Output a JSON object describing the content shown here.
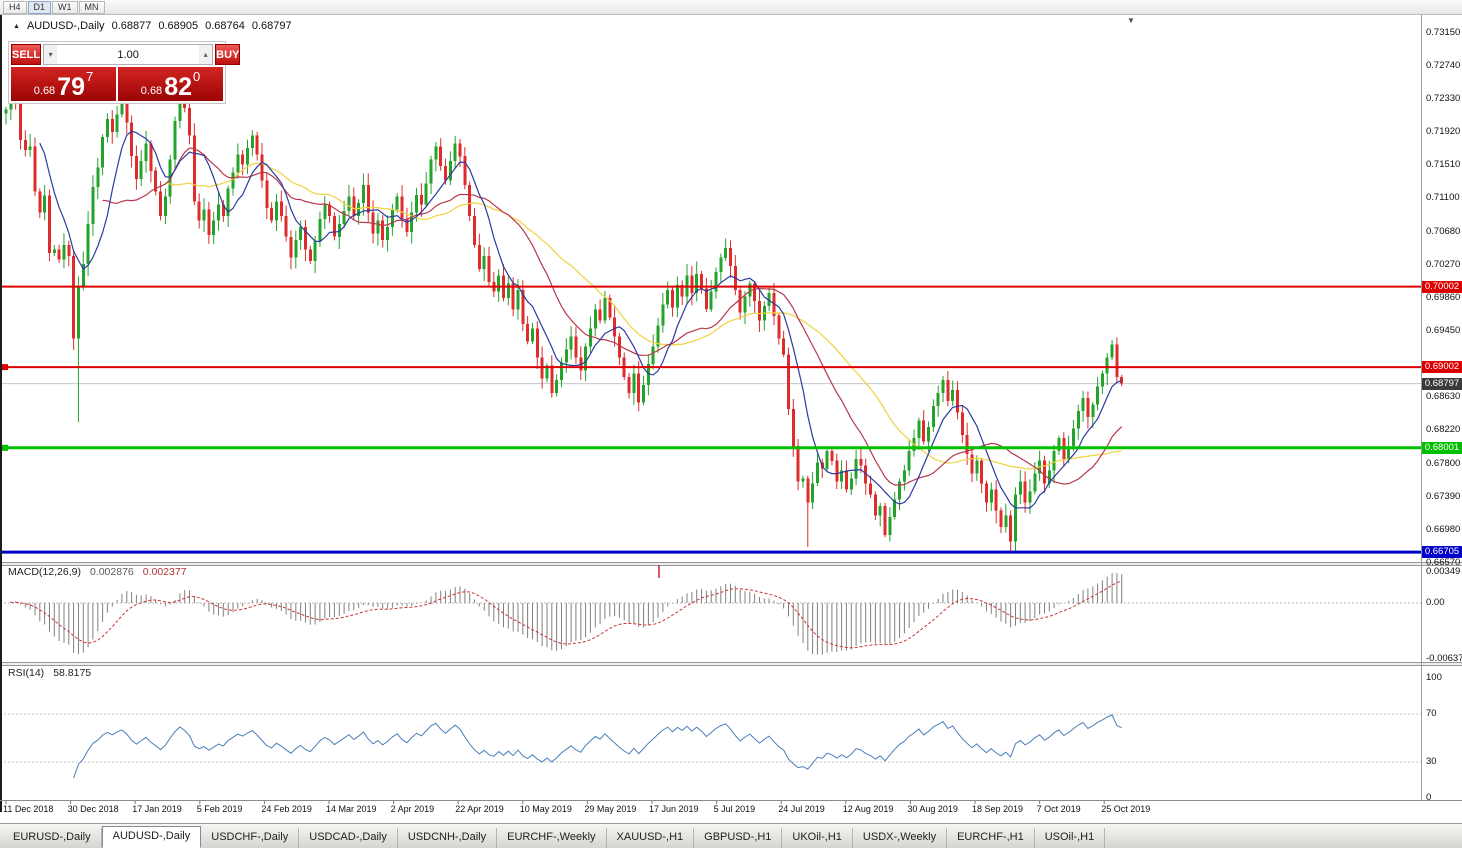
{
  "toolbar": {
    "timeframes": [
      "H4",
      "D1",
      "W1",
      "MN"
    ],
    "active": "D1"
  },
  "chart": {
    "symbol_label": "AUDUSD-,Daily",
    "title_icon": "▲",
    "shift_marker_icon": "▼",
    "ohlc": {
      "open": "0.68877",
      "high": "0.68905",
      "low": "0.68764",
      "close": "0.68797"
    },
    "colors": {
      "bull": "#24a32b",
      "bear": "#de2b2b",
      "current_price_line": "#c8c8c8"
    },
    "trade_panel": {
      "sell_label": "SELL",
      "buy_label": "BUY",
      "volume": "1.00",
      "volume_down_icon": "▾",
      "volume_up_icon": "▴",
      "sell_price": {
        "prefix": "0.68",
        "big": "79",
        "sup": "7"
      },
      "buy_price": {
        "prefix": "0.68",
        "big": "82",
        "sup": "0"
      }
    }
  },
  "chart_data": {
    "type": "candlestick",
    "symbol": "AUDUSD",
    "timeframe": "Daily",
    "x_labels": [
      "11 Dec 2018",
      "30 Dec 2018",
      "17 Jan 2019",
      "5 Feb 2019",
      "24 Feb 2019",
      "14 Mar 2019",
      "2 Apr 2019",
      "22 Apr 2019",
      "10 May 2019",
      "29 May 2019",
      "17 Jun 2019",
      "5 Jul 2019",
      "24 Jul 2019",
      "12 Aug 2019",
      "30 Aug 2019",
      "18 Sep 2019",
      "7 Oct 2019",
      "25 Oct 2019"
    ],
    "y_axis_labels": [
      "0.73150",
      "0.72740",
      "0.72330",
      "0.71920",
      "0.71510",
      "0.71100",
      "0.70680",
      "0.70270",
      "0.69860",
      "0.69450",
      "0.68630",
      "0.68220",
      "0.67800",
      "0.67390",
      "0.66980",
      "0.66570"
    ],
    "first_open": 0.7215,
    "closes": [
      0.722,
      0.7243,
      0.7228,
      0.7182,
      0.717,
      0.7174,
      0.7118,
      0.7092,
      0.7113,
      0.7042,
      0.7046,
      0.7034,
      0.7052,
      0.7038,
      0.6936,
      0.7,
      0.7028,
      0.7078,
      0.7124,
      0.7148,
      0.7186,
      0.7208,
      0.7192,
      0.7214,
      0.723,
      0.7204,
      0.7162,
      0.7134,
      0.7156,
      0.7178,
      0.7144,
      0.7118,
      0.7088,
      0.7112,
      0.7158,
      0.7206,
      0.7244,
      0.7222,
      0.7188,
      0.7106,
      0.7082,
      0.7096,
      0.7064,
      0.7082,
      0.7102,
      0.7088,
      0.7122,
      0.7142,
      0.7164,
      0.7152,
      0.7172,
      0.7188,
      0.7164,
      0.7132,
      0.7098,
      0.7082,
      0.7106,
      0.7088,
      0.7062,
      0.7036,
      0.7058,
      0.7074,
      0.7046,
      0.7032,
      0.7056,
      0.7084,
      0.7102,
      0.7088,
      0.7062,
      0.7078,
      0.7094,
      0.7112,
      0.7088,
      0.7104,
      0.7126,
      0.7092,
      0.7066,
      0.7082,
      0.7058,
      0.7074,
      0.7096,
      0.7112,
      0.7084,
      0.7068,
      0.7092,
      0.7114,
      0.7102,
      0.7128,
      0.7158,
      0.7174,
      0.715,
      0.7132,
      0.7156,
      0.7178,
      0.7162,
      0.7126,
      0.7088,
      0.7052,
      0.7022,
      0.7038,
      0.7006,
      0.6994,
      0.7014,
      0.6986,
      0.7004,
      0.6972,
      0.6996,
      0.6954,
      0.6932,
      0.6948,
      0.6912,
      0.6886,
      0.6902,
      0.6868,
      0.6884,
      0.6906,
      0.6922,
      0.6938,
      0.6912,
      0.6896,
      0.6926,
      0.6948,
      0.6972,
      0.6958,
      0.6986,
      0.6962,
      0.6938,
      0.6912,
      0.6888,
      0.6868,
      0.6892,
      0.6856,
      0.6878,
      0.6904,
      0.6926,
      0.6952,
      0.6978,
      0.6996,
      0.6974,
      0.7002,
      0.6988,
      0.7014,
      0.6992,
      0.7016,
      0.6998,
      0.6972,
      0.6994,
      0.7018,
      0.7036,
      0.7048,
      0.7026,
      0.6996,
      0.6968,
      0.6988,
      0.7004,
      0.6982,
      0.6958,
      0.6976,
      0.6992,
      0.6964,
      0.6936,
      0.6916,
      0.6848,
      0.6802,
      0.6758,
      0.6762,
      0.6732,
      0.6756,
      0.6782,
      0.6774,
      0.6796,
      0.6784,
      0.6758,
      0.6772,
      0.6748,
      0.6762,
      0.6786,
      0.6778,
      0.6756,
      0.6742,
      0.6716,
      0.6728,
      0.6692,
      0.6714,
      0.6736,
      0.6758,
      0.6772,
      0.6796,
      0.6812,
      0.6834,
      0.6808,
      0.6826,
      0.6852,
      0.6868,
      0.6884,
      0.6858,
      0.6872,
      0.6844,
      0.6816,
      0.6792,
      0.6768,
      0.6784,
      0.6756,
      0.6732,
      0.6748,
      0.6722,
      0.6702,
      0.6716,
      0.6684,
      0.6742,
      0.6758,
      0.6732,
      0.6746,
      0.6768,
      0.6784,
      0.6756,
      0.6772,
      0.6796,
      0.6812,
      0.6786,
      0.6802,
      0.6824,
      0.6846,
      0.6862,
      0.6838,
      0.6854,
      0.6876,
      0.6892,
      0.6912,
      0.6928,
      0.6888,
      0.68797
    ],
    "wick_overrides": {
      "15": {
        "low": 0.6832
      },
      "36": {
        "high": 0.7272
      },
      "149": {
        "high": 0.706
      },
      "166": {
        "low": 0.6677
      },
      "182": {
        "low": 0.6689
      },
      "208": {
        "low": 0.667
      },
      "229": {
        "high": 0.6934
      },
      "231": {
        "high": 0.68905,
        "low": 0.68764
      }
    },
    "horizontal_lines": [
      {
        "price": 0.70002,
        "label": "0.70002",
        "color": "#dd0000",
        "thickness": 2,
        "left_marker": false
      },
      {
        "price": 0.69002,
        "label": "0.69002",
        "color": "#dd0000",
        "thickness": 2,
        "left_marker": true
      },
      {
        "price": 0.68001,
        "label": "0.68001",
        "color": "#00c000",
        "thickness": 3,
        "left_marker": true
      },
      {
        "price": 0.66705,
        "label": "0.66705",
        "color": "#0000c8",
        "thickness": 3,
        "left_marker": false
      }
    ],
    "current_price": {
      "value": 0.68797,
      "label": "0.68797",
      "badge_color": "#3a3a3a"
    },
    "moving_averages": [
      {
        "period": 8,
        "color": "#2b3a9e"
      },
      {
        "period": 21,
        "color": "#b8374b"
      },
      {
        "period": 34,
        "color": "#efd23e"
      }
    ],
    "macd": {
      "label": "MACD(12,26,9)",
      "main_value": "0.002876",
      "signal_value": "0.002377",
      "fast": 12,
      "slow": 26,
      "signal": 9,
      "axis_labels": [
        "0.00349",
        "0.00",
        "-0.00637"
      ],
      "histogram_color": "#808080",
      "signal_color": "#cc3333"
    },
    "rsi": {
      "label": "RSI(14)",
      "value_label": "58.8175",
      "period": 14,
      "axis_labels": [
        "100",
        "70",
        "30",
        "0"
      ],
      "levels": [
        70,
        30
      ],
      "line_color": "#4a7ebb"
    }
  },
  "tabs": [
    {
      "label": "EURUSD-,Daily",
      "active": false
    },
    {
      "label": "AUDUSD-,Daily",
      "active": true
    },
    {
      "label": "USDCHF-,Daily",
      "active": false
    },
    {
      "label": "USDCAD-,Daily",
      "active": false
    },
    {
      "label": "USDCNH-,Daily",
      "active": false
    },
    {
      "label": "EURCHF-,Weekly",
      "active": false
    },
    {
      "label": "XAUUSD-,H1",
      "active": false
    },
    {
      "label": "GBPUSD-,H1",
      "active": false
    },
    {
      "label": "UKOil-,H1",
      "active": false
    },
    {
      "label": "USDX-,Weekly",
      "active": false
    },
    {
      "label": "EURCHF-,H1",
      "active": false
    },
    {
      "label": "USOil-,H1",
      "active": false
    }
  ]
}
